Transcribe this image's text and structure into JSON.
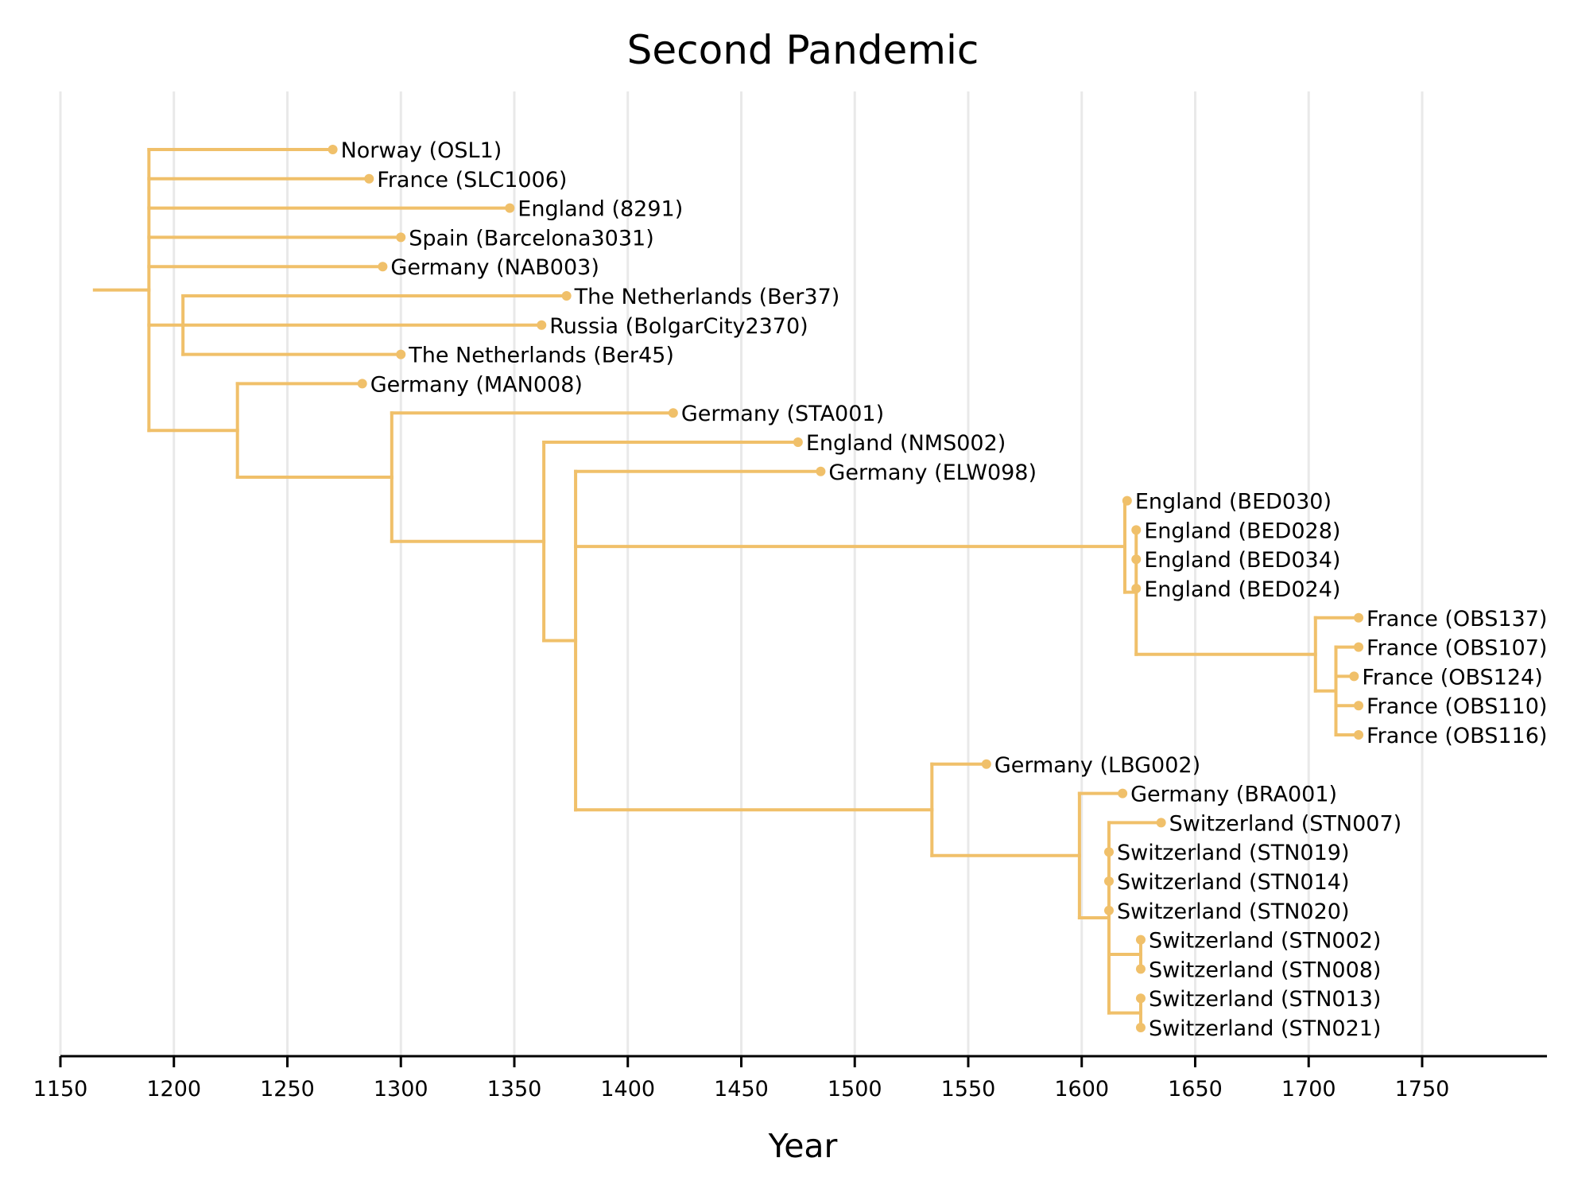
{
  "chart_data": {
    "type": "phylogenetic-tree",
    "title": "Second Pandemic",
    "xlabel": "Year",
    "xlim": [
      1150,
      1805
    ],
    "xticks": [
      1150,
      1200,
      1250,
      1300,
      1350,
      1400,
      1450,
      1500,
      1550,
      1600,
      1650,
      1700,
      1750
    ],
    "grid": true,
    "color": "#f0c06a",
    "root_x": 1165,
    "tree": {
      "x": 1189,
      "children": [
        {
          "label": "Norway (OSL1)",
          "x": 1270
        },
        {
          "label": "France (SLC1006)",
          "x": 1286
        },
        {
          "label": "England (8291)",
          "x": 1348
        },
        {
          "label": "Spain (Barcelona3031)",
          "x": 1300
        },
        {
          "label": "Germany (NAB003)",
          "x": 1292
        },
        {
          "x": 1204,
          "children": [
            {
              "label": "The Netherlands (Ber37)",
              "x": 1373
            },
            {
              "label": "Russia (BolgarCity2370)",
              "x": 1362
            },
            {
              "label": "The Netherlands (Ber45)",
              "x": 1300
            }
          ]
        },
        {
          "x": 1228,
          "children": [
            {
              "label": "Germany (MAN008)",
              "x": 1283
            },
            {
              "x": 1296,
              "children": [
                {
                  "label": "Germany (STA001)",
                  "x": 1420
                },
                {
                  "x": 1363,
                  "children": [
                    {
                      "label": "England (NMS002)",
                      "x": 1475
                    },
                    {
                      "x": 1377,
                      "children": [
                        {
                          "label": "Germany (ELW098)",
                          "x": 1485
                        },
                        {
                          "x": 1619,
                          "children": [
                            {
                              "label": "England (BED030)",
                              "x": 1620
                            },
                            {
                              "x": 1624,
                              "children": [
                                {
                                  "label": "England (BED028)",
                                  "x": 1624
                                },
                                {
                                  "label": "England (BED034)",
                                  "x": 1624
                                },
                                {
                                  "label": "England (BED024)",
                                  "x": 1624
                                },
                                {
                                  "x": 1703,
                                  "children": [
                                    {
                                      "label": "France (OBS137)",
                                      "x": 1722
                                    },
                                    {
                                      "x": 1712,
                                      "children": [
                                        {
                                          "label": "France (OBS107)",
                                          "x": 1722
                                        },
                                        {
                                          "label": "France (OBS124)",
                                          "x": 1720
                                        },
                                        {
                                          "label": "France (OBS110)",
                                          "x": 1722
                                        },
                                        {
                                          "label": "France (OBS116)",
                                          "x": 1722
                                        }
                                      ]
                                    }
                                  ]
                                }
                              ]
                            }
                          ]
                        },
                        {
                          "x": 1534,
                          "children": [
                            {
                              "label": "Germany (LBG002)",
                              "x": 1558
                            },
                            {
                              "x": 1599,
                              "children": [
                                {
                                  "label": "Germany (BRA001)",
                                  "x": 1618
                                },
                                {
                                  "x": 1612,
                                  "children": [
                                    {
                                      "label": "Switzerland (STN007)",
                                      "x": 1635
                                    },
                                    {
                                      "label": "Switzerland (STN019)",
                                      "x": 1612
                                    },
                                    {
                                      "label": "Switzerland (STN014)",
                                      "x": 1612
                                    },
                                    {
                                      "label": "Switzerland (STN020)",
                                      "x": 1612
                                    },
                                    {
                                      "x": 1626,
                                      "children": [
                                        {
                                          "label": "Switzerland (STN002)",
                                          "x": 1626
                                        },
                                        {
                                          "label": "Switzerland (STN008)",
                                          "x": 1626
                                        }
                                      ]
                                    },
                                    {
                                      "x": 1626,
                                      "children": [
                                        {
                                          "label": "Switzerland (STN013)",
                                          "x": 1626
                                        },
                                        {
                                          "label": "Switzerland (STN021)",
                                          "x": 1626
                                        }
                                      ]
                                    }
                                  ]
                                }
                              ]
                            }
                          ]
                        }
                      ]
                    }
                  ]
                }
              ]
            }
          ]
        }
      ]
    }
  }
}
